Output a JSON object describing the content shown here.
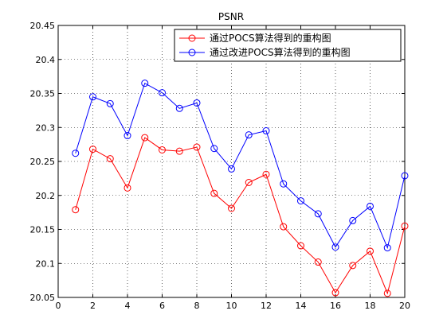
{
  "chart_data": {
    "type": "line",
    "title": "PSNR",
    "xlabel": "",
    "ylabel": "",
    "xlim": [
      0,
      20
    ],
    "ylim": [
      20.05,
      20.45
    ],
    "xticks": [
      0,
      2,
      4,
      6,
      8,
      10,
      12,
      14,
      16,
      18,
      20
    ],
    "yticks": [
      20.05,
      20.1,
      20.15,
      20.2,
      20.25,
      20.3,
      20.35,
      20.4,
      20.45
    ],
    "grid": true,
    "legend_position": "top-right",
    "x": [
      1,
      2,
      3,
      4,
      5,
      6,
      7,
      8,
      9,
      10,
      11,
      12,
      13,
      14,
      15,
      16,
      17,
      18,
      19,
      20
    ],
    "series": [
      {
        "name": "通过POCS算法得到的重构图",
        "color": "#ff0000",
        "marker": "circle",
        "values": [
          20.179,
          20.268,
          20.254,
          20.211,
          20.285,
          20.267,
          20.265,
          20.271,
          20.203,
          20.181,
          20.219,
          20.231,
          20.154,
          20.126,
          20.102,
          20.057,
          20.097,
          20.118,
          20.056,
          20.155
        ]
      },
      {
        "name": "通过改进POCS算法得到的重构图",
        "color": "#0000ff",
        "marker": "circle",
        "values": [
          20.262,
          20.345,
          20.335,
          20.288,
          20.365,
          20.351,
          20.328,
          20.336,
          20.269,
          20.239,
          20.289,
          20.295,
          20.217,
          20.192,
          20.173,
          20.124,
          20.163,
          20.184,
          20.123,
          20.229
        ]
      }
    ]
  }
}
